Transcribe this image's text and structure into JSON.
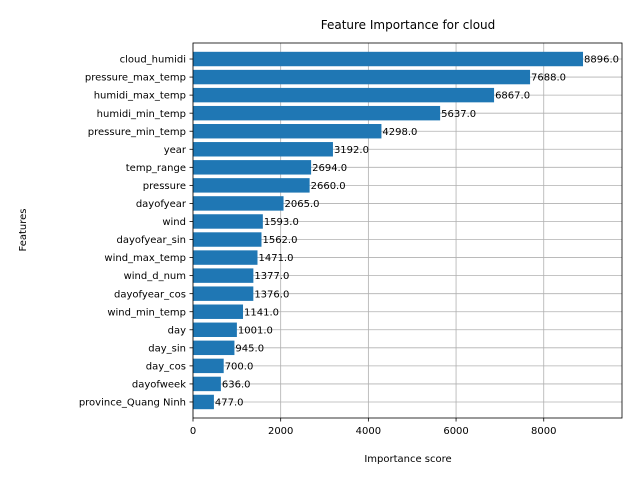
{
  "chart_data": {
    "type": "bar",
    "orientation": "horizontal",
    "title": "Feature Importance for cloud",
    "xlabel": "Importance score",
    "ylabel": "Features",
    "xlim": [
      0,
      9785
    ],
    "xticks": [
      0,
      2000,
      4000,
      6000,
      8000
    ],
    "xtick_labels": [
      "0",
      "2000",
      "4000",
      "6000",
      "8000"
    ],
    "grid": true,
    "bar_color": "#1f77b4",
    "categories": [
      "cloud_humidi",
      "pressure_max_temp",
      "humidi_max_temp",
      "humidi_min_temp",
      "pressure_min_temp",
      "year",
      "temp_range",
      "pressure",
      "dayofyear",
      "wind",
      "dayofyear_sin",
      "wind_max_temp",
      "wind_d_num",
      "dayofyear_cos",
      "wind_min_temp",
      "day",
      "day_sin",
      "day_cos",
      "dayofweek",
      "province_Quang Ninh"
    ],
    "values": [
      8896,
      7688,
      6867,
      5637,
      4298,
      3192,
      2694,
      2660,
      2065,
      1593,
      1562,
      1471,
      1377,
      1376,
      1141,
      1001,
      945,
      700,
      636,
      477
    ],
    "value_labels": [
      "8896.0",
      "7688.0",
      "6867.0",
      "5637.0",
      "4298.0",
      "3192.0",
      "2694.0",
      "2660.0",
      "2065.0",
      "1593.0",
      "1562.0",
      "1471.0",
      "1377.0",
      "1376.0",
      "1141.0",
      "1001.0",
      "945.0",
      "700.0",
      "636.0",
      "477.0"
    ]
  }
}
